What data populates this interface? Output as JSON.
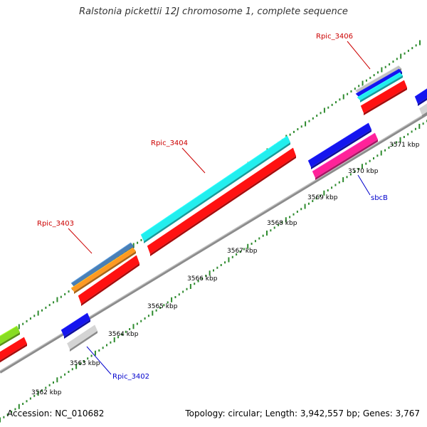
{
  "title": "Ralstonia pickettii 12J chromosome 1, complete sequence",
  "footer": {
    "accession": "Accession: NC_010682",
    "summary": "Topology: circular; Length: 3,942,557 bp; Genes: 3,767"
  },
  "colors": {
    "backbone": "#8c8c8c",
    "tick": "#2e8b2e",
    "label_forward": "#cc0000",
    "label_reverse": "#0000cc"
  },
  "scale": {
    "unit": "kbp",
    "ticks": [
      {
        "kbp": 3562,
        "label": "3562 kbp"
      },
      {
        "kbp": 3563,
        "label": "3563 kbp"
      },
      {
        "kbp": 3564,
        "label": "3564 kbp"
      },
      {
        "kbp": 3565,
        "label": "3565 kbp"
      },
      {
        "kbp": 3566,
        "label": "3566 kbp"
      },
      {
        "kbp": 3567,
        "label": "3567 kbp"
      },
      {
        "kbp": 3568,
        "label": "3568 kbp"
      },
      {
        "kbp": 3569,
        "label": "3569 kbp"
      },
      {
        "kbp": 3570,
        "label": "3570 kbp"
      },
      {
        "kbp": 3571,
        "label": "3571 kbp"
      }
    ]
  },
  "gene_labels": [
    {
      "text": "Rpic_3403",
      "strand": "forward"
    },
    {
      "text": "Rpic_3404",
      "strand": "forward"
    },
    {
      "text": "Rpic_3406",
      "strand": "forward"
    },
    {
      "text": "Rpic_3402",
      "strand": "reverse"
    },
    {
      "text": "sbcB",
      "strand": "reverse"
    }
  ]
}
